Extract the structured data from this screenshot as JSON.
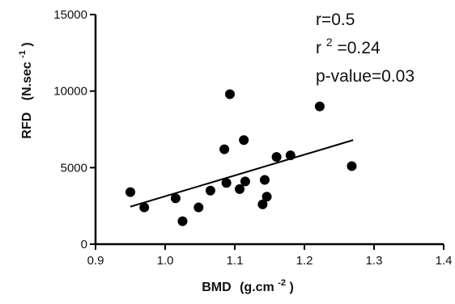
{
  "chart_data": {
    "type": "scatter",
    "title": "",
    "xlabel": "BMD",
    "xlabel_unit_base": "(g.cm",
    "xlabel_unit_exp": "-2",
    "xlabel_unit_close": ")",
    "ylabel": "RFD",
    "ylabel_unit_base": "(N.sec",
    "ylabel_unit_exp": "-1",
    "ylabel_unit_close": ")",
    "xlim": [
      0.9,
      1.4
    ],
    "ylim": [
      0,
      15000
    ],
    "xticks": [
      0.9,
      1.0,
      1.1,
      1.2,
      1.3,
      1.4
    ],
    "xtick_labels": [
      "0.9",
      "1.0",
      "1.1",
      "1.2",
      "1.3",
      "1.4"
    ],
    "yticks": [
      0,
      5000,
      10000,
      15000
    ],
    "ytick_labels": [
      "0",
      "5000",
      "10000",
      "15000"
    ],
    "grid": false,
    "points": [
      {
        "x": 0.95,
        "y": 3400
      },
      {
        "x": 0.97,
        "y": 2400
      },
      {
        "x": 1.015,
        "y": 3000
      },
      {
        "x": 1.025,
        "y": 1500
      },
      {
        "x": 1.048,
        "y": 2400
      },
      {
        "x": 1.065,
        "y": 3500
      },
      {
        "x": 1.085,
        "y": 6200
      },
      {
        "x": 1.088,
        "y": 4000
      },
      {
        "x": 1.093,
        "y": 9800
      },
      {
        "x": 1.107,
        "y": 3600
      },
      {
        "x": 1.113,
        "y": 6800
      },
      {
        "x": 1.115,
        "y": 4100
      },
      {
        "x": 1.14,
        "y": 2600
      },
      {
        "x": 1.143,
        "y": 4200
      },
      {
        "x": 1.146,
        "y": 3100
      },
      {
        "x": 1.16,
        "y": 5700
      },
      {
        "x": 1.18,
        "y": 5800
      },
      {
        "x": 1.222,
        "y": 9000
      },
      {
        "x": 1.268,
        "y": 5100
      }
    ],
    "regression_line": {
      "x": [
        0.95,
        1.27
      ],
      "y": [
        2450,
        6800
      ]
    },
    "annotations": {
      "r": "r=0.5",
      "r2_base": "r",
      "r2_exp": "2",
      "r2_value": "=0.24",
      "p": "p-value=0.03"
    },
    "colors": {
      "points": "#000000",
      "line": "#000000",
      "axes": "#000000"
    }
  }
}
